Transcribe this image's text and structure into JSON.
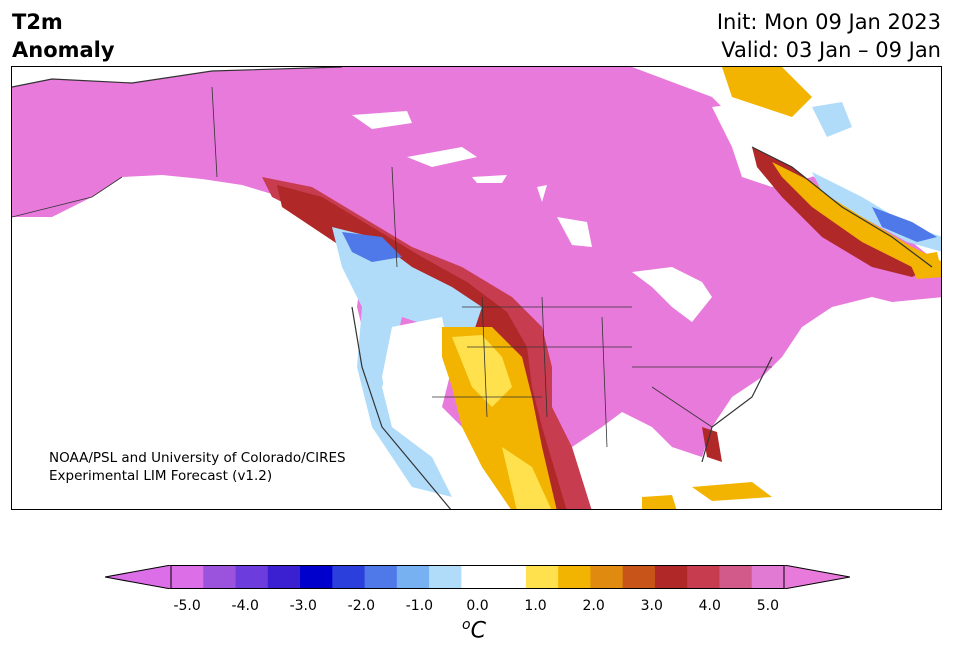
{
  "title": {
    "line1": "T2m",
    "line2": "Anomaly"
  },
  "dates": {
    "init": "Init: Mon 09 Jan 2023",
    "valid": "Valid: 03 Jan – 09 Jan"
  },
  "credit": {
    "line1": "NOAA/PSL and University of Colorado/CIRES",
    "line2": "Experimental LIM Forecast (v1.2)"
  },
  "colorbar": {
    "ticks": [
      "-5.0",
      "-4.0",
      "-3.0",
      "-2.0",
      "-1.0",
      "0.0",
      "1.0",
      "2.0",
      "3.0",
      "4.0",
      "5.0"
    ],
    "unit_base": "C",
    "unit_prefix": "o",
    "colors": [
      "#dc6ee8",
      "#9b52dc",
      "#6c3ddc",
      "#3a20d0",
      "#0000cd",
      "#2a3fdc",
      "#4f78e8",
      "#78b1f2",
      "#b0dcfa",
      "#ffffff",
      "#ffffff",
      "#ffe14d",
      "#f2b400",
      "#e08a10",
      "#c8541a",
      "#b02828",
      "#c83c50",
      "#d25a8a",
      "#e07ad2"
    ],
    "extend_low_color": "#dc6ee8",
    "extend_high_color": "#e87adc"
  }
}
